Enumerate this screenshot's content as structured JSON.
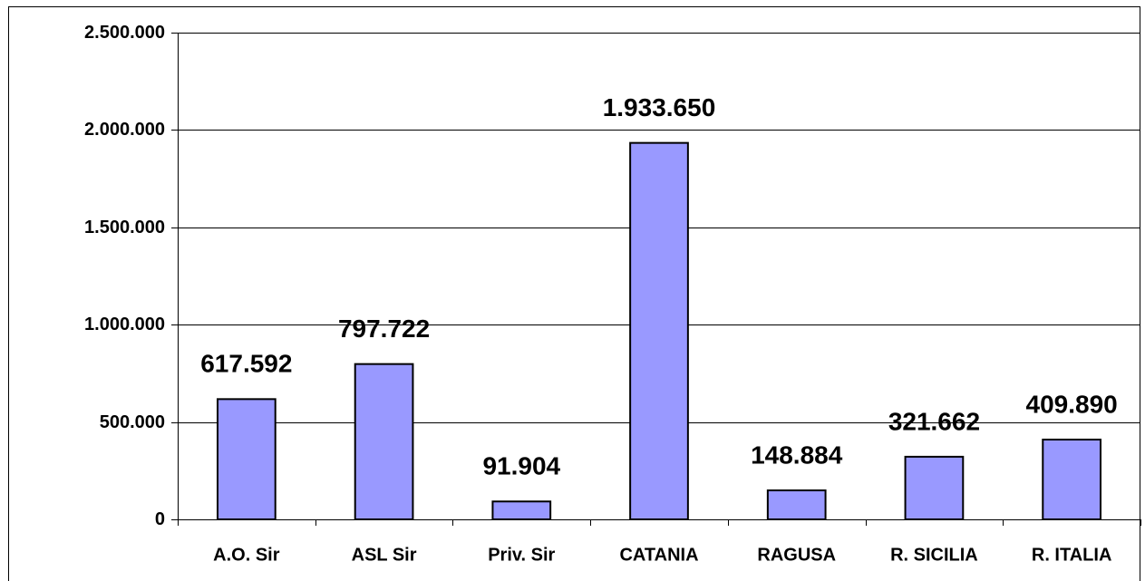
{
  "chart_data": {
    "type": "bar",
    "categories": [
      "A.O. Sir",
      "ASL Sir",
      "Priv. Sir",
      "CATANIA",
      "RAGUSA",
      "R. SICILIA",
      "R. ITALIA"
    ],
    "values": [
      617592,
      797722,
      91904,
      1933650,
      148884,
      321662,
      409890
    ],
    "value_labels": [
      "617.592",
      "797.722",
      "91.904",
      "1.933.650",
      "148.884",
      "321.662",
      "409.890"
    ],
    "color": "#9999ff",
    "ylim": [
      0,
      2500000
    ],
    "yticks": [
      0,
      {
        "value": 500000,
        "label": "500.000"
      },
      {
        "value": 1000000,
        "label": "1.000.000"
      },
      {
        "value": 1500000,
        "label": "1.500.000"
      },
      {
        "value": 2000000,
        "label": "2.000.000"
      },
      {
        "value": 2500000,
        "label": "2.500.000"
      }
    ],
    "grid": true
  }
}
